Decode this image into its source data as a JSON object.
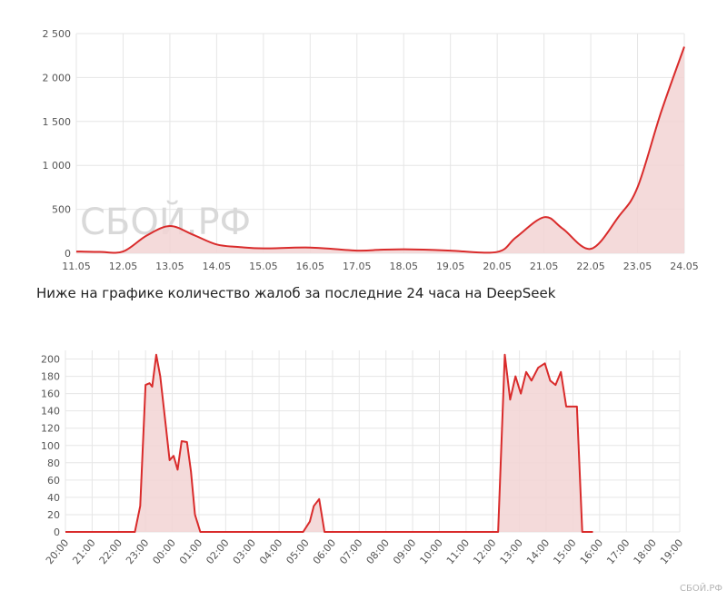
{
  "caption": "Ниже на графике количество жалоб за последние 24 часа на DeepSeek",
  "watermark": "СБОЙ.РФ",
  "watermark_small": "СБОЙ.РФ",
  "colors": {
    "line": "#d92b2b",
    "fill": "#f2d3d3",
    "grid": "#e6e6e6",
    "text": "#555555"
  },
  "chart_data": [
    {
      "type": "area",
      "title": "",
      "xlabel": "",
      "ylabel": "",
      "grid": true,
      "categories": [
        "11.05",
        "12.05",
        "13.05",
        "14.05",
        "15.05",
        "16.05",
        "17.05",
        "18.05",
        "19.05",
        "20.05",
        "21.05",
        "22.05",
        "23.05",
        "24.05"
      ],
      "ylim": [
        0,
        2500
      ],
      "yticks": [
        0,
        500,
        1000,
        1500,
        2000,
        2500
      ],
      "ytick_labels": [
        "0",
        "500",
        "1 000",
        "1 500",
        "2 000",
        "2 500"
      ],
      "x": [
        0,
        0.5,
        1.0,
        1.5,
        2.0,
        2.5,
        3.0,
        3.5,
        4.0,
        5.0,
        6.0,
        6.5,
        7.0,
        7.5,
        8.0,
        9.0,
        9.4,
        10.0,
        10.4,
        11.0,
        11.6,
        12.0,
        12.5,
        13.0
      ],
      "y": [
        20,
        15,
        20,
        200,
        310,
        210,
        100,
        70,
        55,
        65,
        30,
        40,
        45,
        40,
        30,
        15,
        180,
        410,
        280,
        50,
        420,
        750,
        1600,
        2350
      ]
    },
    {
      "type": "area",
      "title": "",
      "xlabel": "",
      "ylabel": "",
      "grid": true,
      "categories": [
        "20:00",
        "21:00",
        "22:00",
        "23:00",
        "00:00",
        "01:00",
        "02:00",
        "03:00",
        "04:00",
        "05:00",
        "06:00",
        "07:00",
        "08:00",
        "09:00",
        "10:00",
        "11:00",
        "12:00",
        "13:00",
        "14:00",
        "15:00",
        "16:00",
        "17:00",
        "18:00",
        "19:00"
      ],
      "ylim": [
        0,
        210
      ],
      "yticks": [
        0,
        20,
        40,
        60,
        80,
        100,
        120,
        140,
        160,
        180,
        200
      ],
      "ytick_labels": [
        "0",
        "20",
        "40",
        "60",
        "80",
        "100",
        "120",
        "140",
        "160",
        "180",
        "200"
      ],
      "x": [
        0,
        2.6,
        2.8,
        3.0,
        3.15,
        3.25,
        3.4,
        3.55,
        3.75,
        3.9,
        4.05,
        4.2,
        4.35,
        4.55,
        4.7,
        4.85,
        5.05,
        5.2,
        5.4,
        5.55,
        5.75,
        8.6,
        8.9,
        9.15,
        9.3,
        9.5,
        9.7,
        16.1,
        16.2,
        16.45,
        16.65,
        16.85,
        17.05,
        17.25,
        17.45,
        17.7,
        17.95,
        18.15,
        18.35,
        18.55,
        18.75,
        18.95,
        19.15,
        19.35,
        19.6,
        19.75
      ],
      "y": [
        0,
        0,
        30,
        170,
        172,
        168,
        205,
        180,
        125,
        83,
        88,
        72,
        105,
        104,
        70,
        20,
        0,
        0,
        0,
        0,
        0,
        0,
        0,
        12,
        30,
        38,
        0,
        0,
        0,
        205,
        153,
        180,
        160,
        185,
        175,
        190,
        195,
        175,
        170,
        185,
        145,
        145,
        145,
        0,
        0,
        0
      ]
    }
  ]
}
